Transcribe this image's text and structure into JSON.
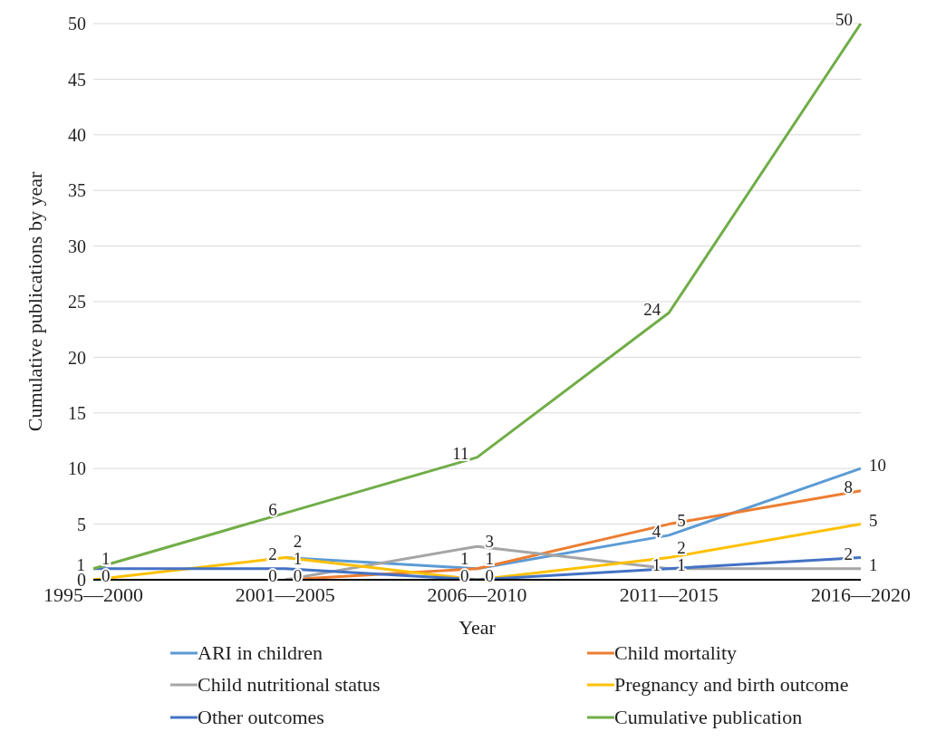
{
  "chart_data": {
    "type": "line",
    "xlabel": "Year",
    "ylabel": "Cumulative publications by year",
    "categories": [
      "1995—2000",
      "2001—2005",
      "2006—2010",
      "2011—2015",
      "2016—2020"
    ],
    "series": [
      {
        "name": "ARI in children",
        "color": "#5b9bd5",
        "values": [
          null,
          2,
          1,
          4,
          10
        ]
      },
      {
        "name": "Child mortality",
        "color": "#ed7d31",
        "values": [
          null,
          0,
          1,
          5,
          8
        ]
      },
      {
        "name": "Child nutritional status",
        "color": "#a5a5a5",
        "values": [
          null,
          0,
          3,
          1,
          1
        ]
      },
      {
        "name": "Pregnancy and birth outcome",
        "color": "#ffc000",
        "values": [
          0,
          2,
          0,
          2,
          5
        ]
      },
      {
        "name": "Other outcomes",
        "color": "#4472c4",
        "values": [
          1,
          1,
          0,
          1,
          2
        ]
      },
      {
        "name": "Cumulative publication",
        "color": "#70ad47",
        "values": [
          1,
          6,
          11,
          24,
          50
        ]
      }
    ],
    "ylim": [
      0,
      50
    ],
    "yticks": [
      0,
      5,
      10,
      15,
      20,
      25,
      30,
      35,
      40,
      45,
      50
    ],
    "grid": "y",
    "legend": "bottom",
    "data_labels": true,
    "marker": "none"
  }
}
